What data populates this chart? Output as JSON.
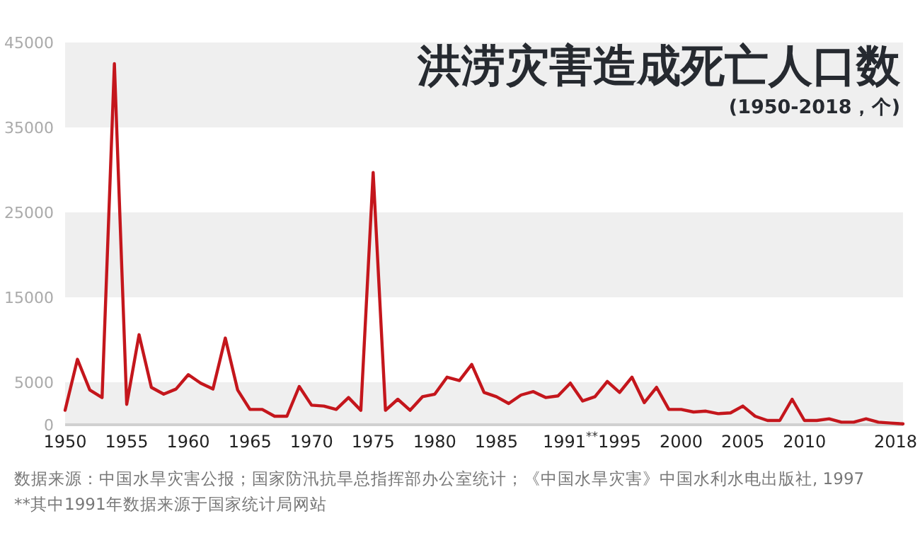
{
  "chart_data": {
    "type": "line",
    "title": "洪涝灾害造成死亡人口数",
    "subtitle": "(1950-2018，个)",
    "x": [
      1950,
      1951,
      1952,
      1953,
      1954,
      1955,
      1956,
      1957,
      1958,
      1959,
      1960,
      1961,
      1962,
      1963,
      1964,
      1965,
      1966,
      1967,
      1968,
      1969,
      1970,
      1971,
      1972,
      1973,
      1974,
      1975,
      1976,
      1977,
      1978,
      1979,
      1980,
      1981,
      1982,
      1983,
      1984,
      1985,
      1986,
      1987,
      1988,
      1989,
      1990,
      1991,
      1992,
      1993,
      1994,
      1995,
      1996,
      1997,
      1998,
      1999,
      2000,
      2001,
      2002,
      2003,
      2004,
      2005,
      2006,
      2007,
      2008,
      2009,
      2010,
      2011,
      2012,
      2013,
      2014,
      2015,
      2016,
      2017,
      2018
    ],
    "series": [
      {
        "color": "#c4161c",
        "values": [
          1700,
          7700,
          4100,
          3200,
          42500,
          2400,
          10600,
          4400,
          3600,
          4200,
          5900,
          4900,
          4200,
          10200,
          4100,
          1800,
          1800,
          1000,
          1000,
          4500,
          2300,
          2200,
          1800,
          3200,
          1700,
          29700,
          1700,
          3000,
          1700,
          3300,
          3600,
          5600,
          5200,
          7100,
          3800,
          3300,
          2500,
          3500,
          3900,
          3200,
          3400,
          4900,
          2800,
          3300,
          5100,
          3800,
          5600,
          2600,
          4400,
          1800,
          1800,
          1500,
          1600,
          1300,
          1400,
          2200,
          1000,
          500,
          500,
          3000,
          500,
          500,
          700,
          300,
          300,
          700,
          300,
          200,
          100
        ]
      }
    ],
    "xlim": [
      1950,
      2018
    ],
    "ylim": [
      0,
      45000
    ],
    "xticks": [
      1950,
      1955,
      1960,
      1965,
      1970,
      1975,
      1980,
      1985,
      {
        "value": 1991,
        "label": "1991$^{**}$"
      },
      1995,
      2000,
      2005,
      2010,
      2018
    ],
    "yticks": [
      0,
      5000,
      15000,
      25000,
      35000,
      45000
    ],
    "bands": [
      {
        "axis": "y",
        "from": 0,
        "to": 5000,
        "color": "#efefef"
      },
      {
        "axis": "y",
        "from": 15000,
        "to": 25000,
        "color": "#efefef"
      },
      {
        "axis": "y",
        "from": 35000,
        "to": 45000,
        "color": "#efefef"
      }
    ],
    "grid": false,
    "marker": "none",
    "line_style": "solid",
    "annotations": [
      "数据来源：中国水旱灾害公报；国家防汛抗旱总指挥部办公室统计；《中国水旱灾害》中国水利水电出版社, 1997",
      "**其中1991年数据来源于国家统计局网站"
    ]
  }
}
